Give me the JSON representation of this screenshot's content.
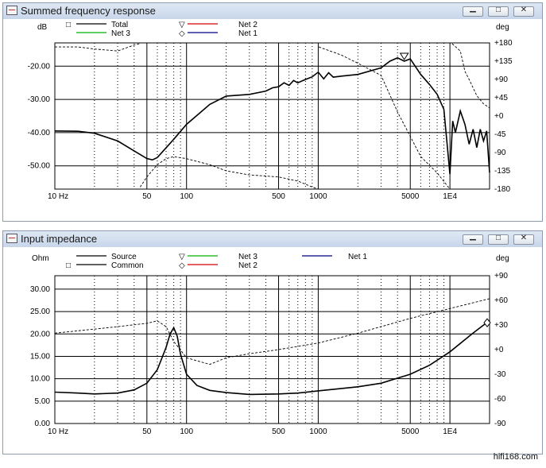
{
  "windows": [
    {
      "title": "Summed frequency response",
      "controls": {
        "minimize": "▁",
        "restore": "□",
        "close": "✕"
      },
      "legend": [
        {
          "marker": "□",
          "label": "Total",
          "color": "#000000"
        },
        {
          "marker": "▽",
          "label": "Net 2",
          "color": "#d40000"
        },
        {
          "marker": "",
          "label": "Net 3",
          "color": "#00b000"
        },
        {
          "marker": "◇",
          "label": "Net 1",
          "color": "#000080"
        }
      ],
      "y_unit_left": "dB",
      "y_unit_right": "deg",
      "y_ticks_left": [
        "-20.00",
        "-30.00",
        "-40.00",
        "-50.00"
      ],
      "y_ticks_right": [
        "+180",
        "+135",
        "+90",
        "+45",
        "+0",
        "-45",
        "-90",
        "-135",
        "-180"
      ],
      "x_ticks": [
        "10 Hz",
        "50",
        "100",
        "500",
        "1000",
        "5000",
        "1E4"
      ]
    },
    {
      "title": "Input impedance",
      "controls": {
        "minimize": "▁",
        "restore": "□",
        "close": "✕"
      },
      "legend": [
        {
          "marker": "",
          "label": "Source",
          "color": "#000000"
        },
        {
          "marker": "□",
          "label": "Common",
          "color": "#000000"
        },
        {
          "marker": "▽",
          "label": "Net 3",
          "color": "#00b000"
        },
        {
          "marker": "◇",
          "label": "Net 2",
          "color": "#d40000"
        },
        {
          "marker": "",
          "label": "Net 1",
          "color": "#000080"
        }
      ],
      "y_unit_left": "Ohm",
      "y_unit_right": "deg",
      "y_ticks_left": [
        "30.00",
        "25.00",
        "20.00",
        "15.00",
        "10.00",
        "5.00",
        "0.00"
      ],
      "y_ticks_right": [
        "+90",
        "+60",
        "+30",
        "+0",
        "-30",
        "-60",
        "-90"
      ],
      "x_ticks": [
        "10 Hz",
        "50",
        "100",
        "500",
        "1000",
        "5000",
        "1E4"
      ]
    }
  ],
  "chart_data": [
    {
      "type": "line",
      "title": "Summed frequency response",
      "xscale": "log",
      "xlim": [
        10,
        20000
      ],
      "ylabel": "dB",
      "ylim": [
        -57,
        -13
      ],
      "y2label": "deg",
      "y2lim": [
        -180,
        180
      ],
      "grid": true,
      "legend_position": "top",
      "series": [
        {
          "name": "Total",
          "axis": "left",
          "style": "solid",
          "x": [
            10,
            15,
            20,
            30,
            40,
            50,
            55,
            60,
            80,
            100,
            150,
            200,
            300,
            400,
            450,
            500,
            550,
            600,
            650,
            700,
            800,
            900,
            1000,
            1100,
            1200,
            1300,
            1500,
            2000,
            3000,
            3500,
            4000,
            4500,
            5000,
            6000,
            7000,
            8000,
            9000,
            10000,
            10500,
            11000,
            12000,
            13000,
            14000,
            15000,
            16000,
            17000,
            18000,
            19000,
            20000
          ],
          "y": [
            -39.5,
            -39.6,
            -40.2,
            -42.5,
            -45.5,
            -47.8,
            -48.2,
            -47.5,
            -42,
            -37.5,
            -31.5,
            -29,
            -28.5,
            -27.5,
            -26.5,
            -26.2,
            -25,
            -25.8,
            -24.3,
            -25,
            -24,
            -23.2,
            -21.8,
            -23.8,
            -22,
            -23.3,
            -23,
            -22.5,
            -20.5,
            -18.5,
            -17.5,
            -18.5,
            -17.8,
            -22.5,
            -25.5,
            -28.5,
            -33,
            -52.5,
            -36.5,
            -40,
            -33.5,
            -37.5,
            -43.5,
            -39,
            -44.5,
            -39,
            -42.5,
            -39.5,
            -52
          ]
        },
        {
          "name": "Total phase",
          "axis": "right",
          "style": "dashed",
          "x": [
            10,
            15,
            20,
            30,
            40,
            44,
            44.5,
            50,
            60,
            70,
            80,
            100,
            150,
            200,
            300,
            500,
            700,
            900,
            1000,
            1010,
            1500,
            2000,
            3000,
            4000,
            5000,
            6000,
            8000,
            10000,
            10400,
            12000,
            13000,
            14000,
            16000,
            18000,
            20000
          ],
          "y": [
            170,
            170,
            165,
            160,
            175,
            178,
            -175,
            -150,
            -120,
            -105,
            -100,
            -105,
            -120,
            -135,
            -145,
            -150,
            -160,
            -175,
            -180,
            170,
            150,
            130,
            100,
            10,
            -50,
            -100,
            -140,
            -180,
            178,
            160,
            110,
            90,
            50,
            30,
            20
          ]
        }
      ]
    },
    {
      "type": "line",
      "title": "Input impedance",
      "xscale": "log",
      "xlim": [
        10,
        20000
      ],
      "ylabel": "Ohm",
      "ylim": [
        0,
        33
      ],
      "y2label": "deg",
      "y2lim": [
        -90,
        90
      ],
      "grid": true,
      "legend_position": "top",
      "series": [
        {
          "name": "Source",
          "axis": "left",
          "style": "solid",
          "x": [
            10,
            15,
            20,
            30,
            40,
            50,
            60,
            70,
            75,
            80,
            85,
            90,
            100,
            120,
            150,
            200,
            300,
            500,
            700,
            1000,
            2000,
            3000,
            5000,
            7000,
            10000,
            15000,
            20000
          ],
          "y": [
            7,
            6.8,
            6.6,
            6.8,
            7.5,
            9,
            12,
            17,
            20,
            21.4,
            19.5,
            15.5,
            11,
            8.5,
            7.4,
            6.9,
            6.5,
            6.6,
            6.8,
            7.3,
            8.2,
            9,
            11,
            13,
            16,
            20.2,
            23
          ]
        },
        {
          "name": "Source phase",
          "axis": "right",
          "style": "dashed",
          "x": [
            10,
            20,
            30,
            50,
            60,
            70,
            80,
            100,
            150,
            200,
            300,
            500,
            1000,
            2000,
            3000,
            5000,
            10000,
            20000
          ],
          "y": [
            20,
            25,
            28,
            32,
            35,
            28,
            10,
            -10,
            -18,
            -10,
            -5,
            0,
            8,
            20,
            28,
            38,
            50,
            62
          ]
        }
      ]
    }
  ],
  "watermark": "hifi168.com"
}
